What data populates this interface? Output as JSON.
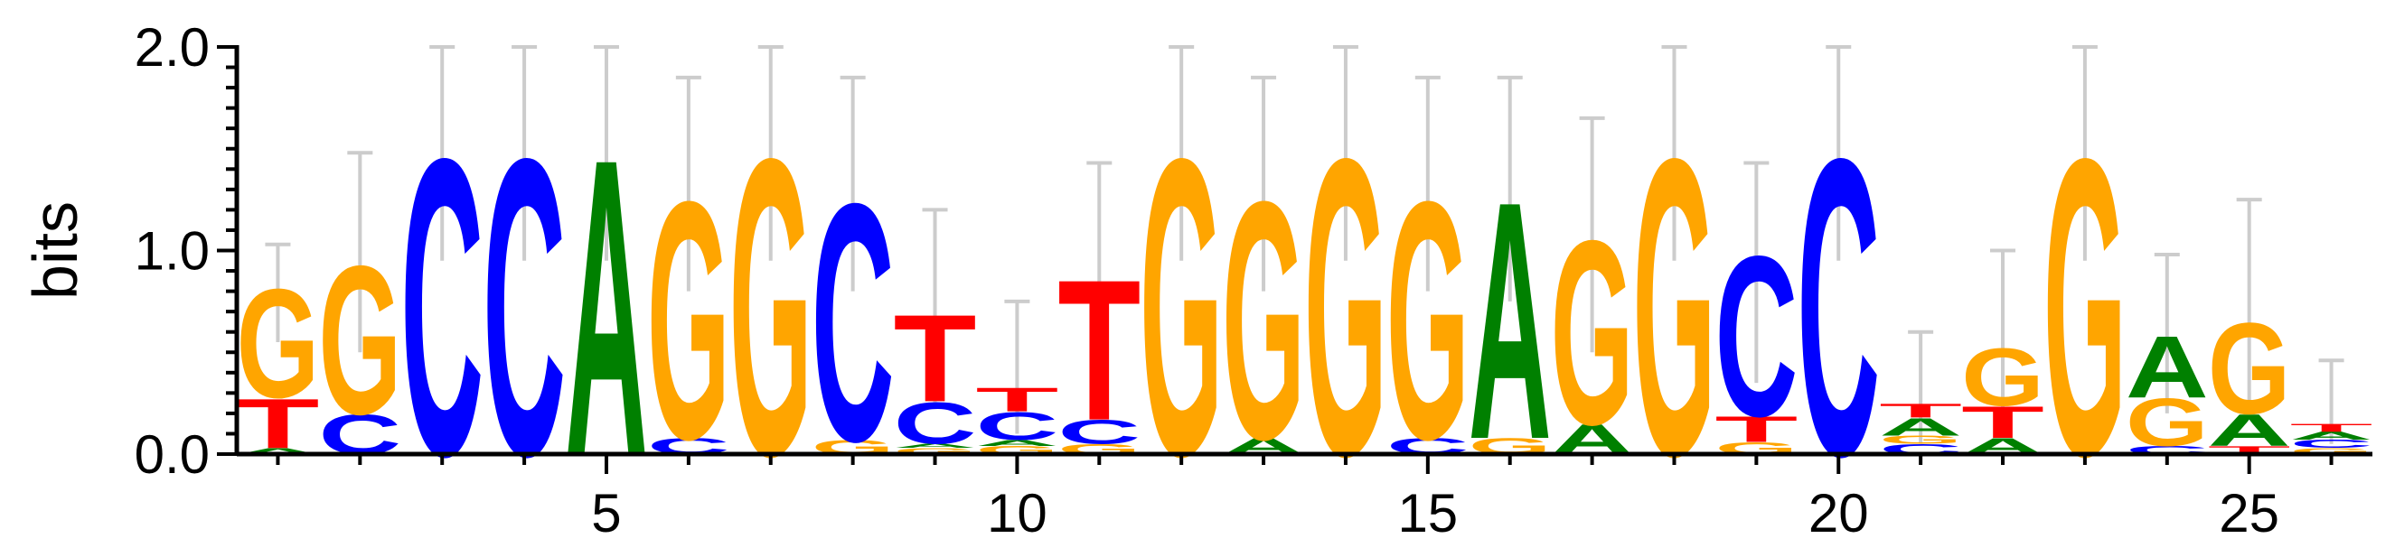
{
  "chart_data": {
    "type": "sequence-logo",
    "ylabel": "bits",
    "ylim": [
      0,
      2.0
    ],
    "y_ticks": [
      {
        "value": 0.0,
        "label": "0.0"
      },
      {
        "value": 1.0,
        "label": "1.0"
      },
      {
        "value": 2.0,
        "label": "2.0"
      }
    ],
    "x_ticks": [
      {
        "value": 5,
        "label": "5"
      },
      {
        "value": 10,
        "label": "10"
      },
      {
        "value": 15,
        "label": "15"
      },
      {
        "value": 20,
        "label": "20"
      },
      {
        "value": 25,
        "label": "25"
      }
    ],
    "colors": {
      "A": "#008000",
      "C": "#0000ff",
      "G": "#ffa500",
      "T": "#ff0000",
      "error_bar": "#cccccc"
    },
    "positions": [
      {
        "pos": 1,
        "error": [
          0.55,
          1.03
        ],
        "letters": [
          {
            "base": "A",
            "bits": 0.03
          },
          {
            "base": "T",
            "bits": 0.25
          },
          {
            "base": "G",
            "bits": 0.55
          }
        ]
      },
      {
        "pos": 2,
        "error": [
          0.5,
          1.48
        ],
        "letters": [
          {
            "base": "C",
            "bits": 0.2
          },
          {
            "base": "G",
            "bits": 0.75
          }
        ]
      },
      {
        "pos": 3,
        "error": [
          0.95,
          2.0
        ],
        "letters": [
          {
            "base": "C",
            "bits": 1.5
          }
        ]
      },
      {
        "pos": 4,
        "error": [
          0.95,
          2.0
        ],
        "letters": [
          {
            "base": "C",
            "bits": 1.5
          }
        ]
      },
      {
        "pos": 5,
        "error": [
          0.95,
          2.0
        ],
        "letters": [
          {
            "base": "A",
            "bits": 1.5
          }
        ]
      },
      {
        "pos": 6,
        "error": [
          0.8,
          1.85
        ],
        "letters": [
          {
            "base": "C",
            "bits": 0.08
          },
          {
            "base": "G",
            "bits": 1.2
          }
        ]
      },
      {
        "pos": 7,
        "error": [
          0.95,
          2.0
        ],
        "letters": [
          {
            "base": "G",
            "bits": 1.5
          }
        ]
      },
      {
        "pos": 8,
        "error": [
          0.8,
          1.85
        ],
        "letters": [
          {
            "base": "G",
            "bits": 0.07
          },
          {
            "base": "C",
            "bits": 1.2
          }
        ]
      },
      {
        "pos": 9,
        "error": [
          0.25,
          1.2
        ],
        "letters": [
          {
            "base": "G",
            "bits": 0.03
          },
          {
            "base": "A",
            "bits": 0.02
          },
          {
            "base": "C",
            "bits": 0.21
          },
          {
            "base": "T",
            "bits": 0.44
          }
        ]
      },
      {
        "pos": 10,
        "error": [
          0.1,
          0.75
        ],
        "letters": [
          {
            "base": "G",
            "bits": 0.04
          },
          {
            "base": "A",
            "bits": 0.03
          },
          {
            "base": "C",
            "bits": 0.14
          },
          {
            "base": "T",
            "bits": 0.12
          }
        ]
      },
      {
        "pos": 11,
        "error": [
          0.4,
          1.43
        ],
        "letters": [
          {
            "base": "G",
            "bits": 0.05
          },
          {
            "base": "C",
            "bits": 0.12
          },
          {
            "base": "T",
            "bits": 0.71
          }
        ]
      },
      {
        "pos": 12,
        "error": [
          0.95,
          2.0
        ],
        "letters": [
          {
            "base": "G",
            "bits": 1.5
          }
        ]
      },
      {
        "pos": 13,
        "error": [
          0.8,
          1.85
        ],
        "letters": [
          {
            "base": "A",
            "bits": 0.08
          },
          {
            "base": "G",
            "bits": 1.2
          }
        ]
      },
      {
        "pos": 14,
        "error": [
          0.95,
          2.0
        ],
        "letters": [
          {
            "base": "G",
            "bits": 1.5
          }
        ]
      },
      {
        "pos": 15,
        "error": [
          0.8,
          1.85
        ],
        "letters": [
          {
            "base": "C",
            "bits": 0.08
          },
          {
            "base": "G",
            "bits": 1.2
          }
        ]
      },
      {
        "pos": 16,
        "error": [
          0.75,
          1.85
        ],
        "letters": [
          {
            "base": "G",
            "bits": 0.08
          },
          {
            "base": "A",
            "bits": 1.2
          }
        ]
      },
      {
        "pos": 17,
        "error": [
          0.5,
          1.65
        ],
        "letters": [
          {
            "base": "A",
            "bits": 0.15
          },
          {
            "base": "G",
            "bits": 0.93
          }
        ]
      },
      {
        "pos": 18,
        "error": [
          0.95,
          2.0
        ],
        "letters": [
          {
            "base": "G",
            "bits": 1.5
          }
        ]
      },
      {
        "pos": 19,
        "error": [
          0.35,
          1.43
        ],
        "letters": [
          {
            "base": "G",
            "bits": 0.06
          },
          {
            "base": "T",
            "bits": 0.13
          },
          {
            "base": "C",
            "bits": 0.81
          }
        ]
      },
      {
        "pos": 20,
        "error": [
          0.95,
          2.0
        ],
        "letters": [
          {
            "base": "C",
            "bits": 1.5
          }
        ]
      },
      {
        "pos": 21,
        "error": [
          0.05,
          0.6
        ],
        "letters": [
          {
            "base": "C",
            "bits": 0.05
          },
          {
            "base": "G",
            "bits": 0.04
          },
          {
            "base": "A",
            "bits": 0.09
          },
          {
            "base": "T",
            "bits": 0.07
          }
        ]
      },
      {
        "pos": 22,
        "error": [
          0.2,
          1.0
        ],
        "letters": [
          {
            "base": "A",
            "bits": 0.08
          },
          {
            "base": "T",
            "bits": 0.16
          },
          {
            "base": "G",
            "bits": 0.29
          }
        ]
      },
      {
        "pos": 23,
        "error": [
          0.95,
          2.0
        ],
        "letters": [
          {
            "base": "G",
            "bits": 1.5
          }
        ]
      },
      {
        "pos": 24,
        "error": [
          0.2,
          0.98
        ],
        "letters": [
          {
            "base": "C",
            "bits": 0.04
          },
          {
            "base": "G",
            "bits": 0.24
          },
          {
            "base": "A",
            "bits": 0.31
          }
        ]
      },
      {
        "pos": 25,
        "error": [
          0.25,
          1.25
        ],
        "letters": [
          {
            "base": "T",
            "bits": 0.04
          },
          {
            "base": "A",
            "bits": 0.16
          },
          {
            "base": "G",
            "bits": 0.46
          }
        ]
      },
      {
        "pos": 26,
        "error": [
          0.05,
          0.46
        ],
        "letters": [
          {
            "base": "G",
            "bits": 0.03
          },
          {
            "base": "C",
            "bits": 0.04
          },
          {
            "base": "A",
            "bits": 0.04
          },
          {
            "base": "T",
            "bits": 0.04
          }
        ]
      }
    ]
  }
}
